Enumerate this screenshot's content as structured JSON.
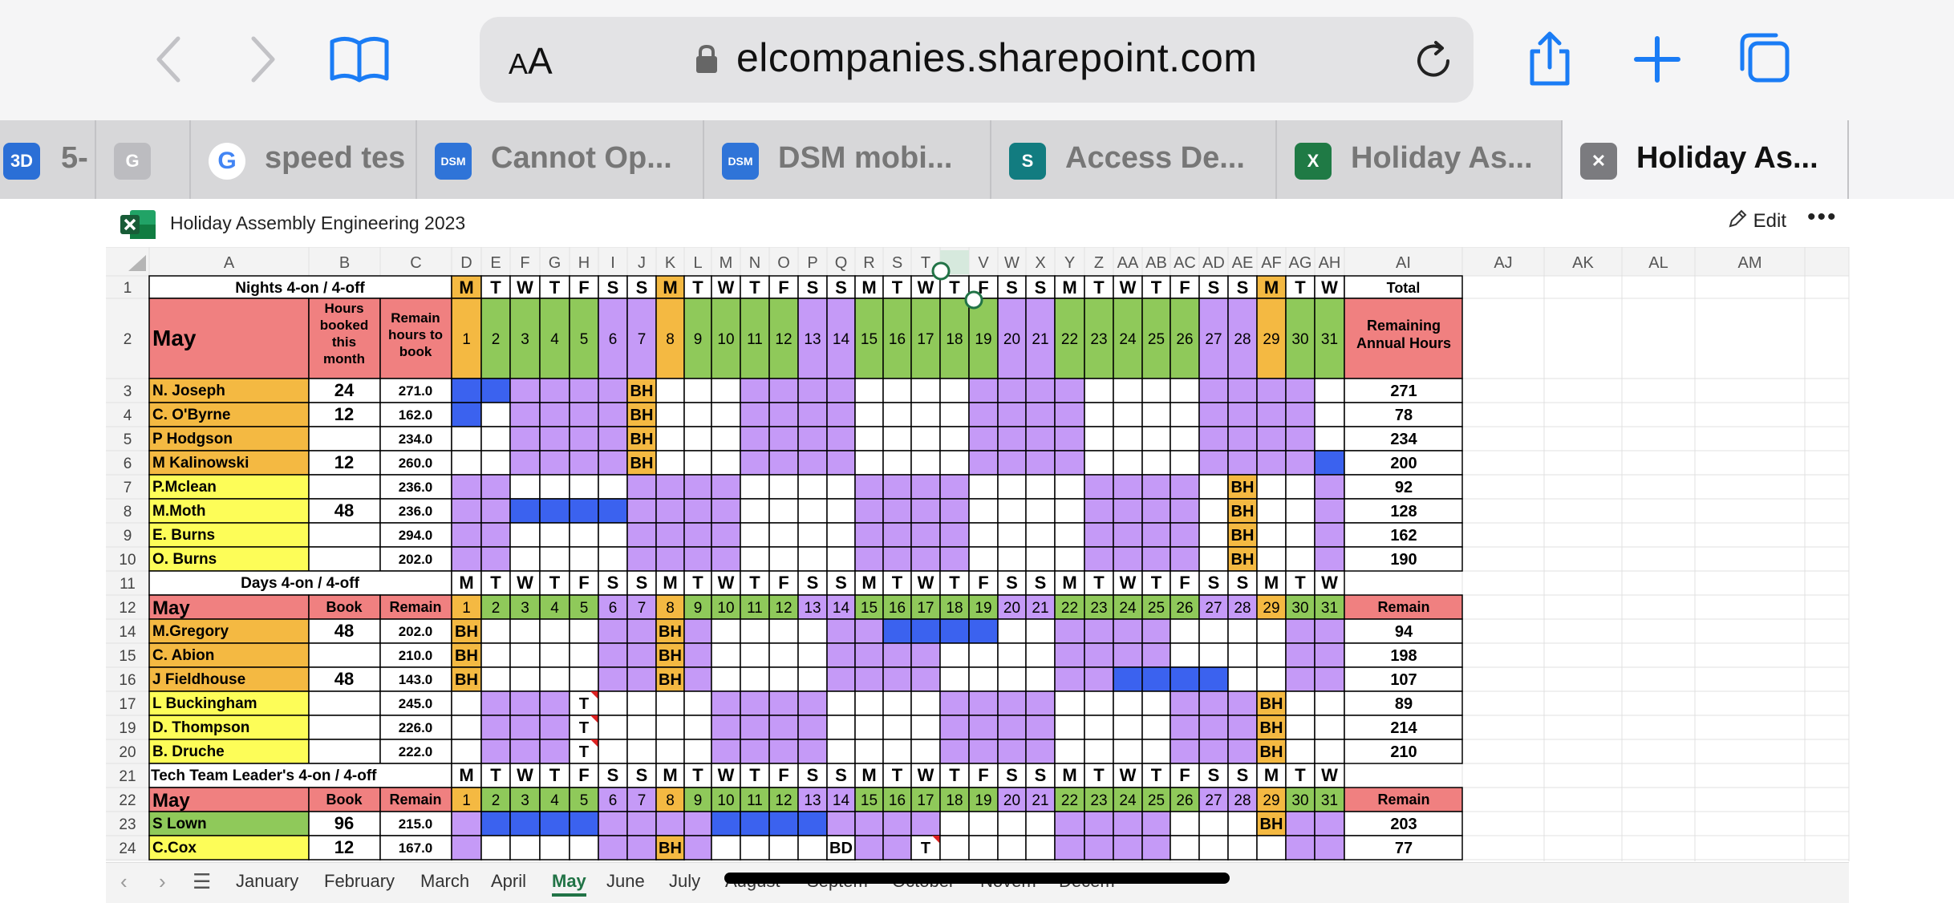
{
  "browser": {
    "url": "elcompanies.sharepoint.com",
    "aa_label_small": "A",
    "aa_label_big": "A",
    "tabs": [
      {
        "label": "5-",
        "icon_text": "3D",
        "icon_color": "#2b6fd6"
      },
      {
        "label": "",
        "icon_text": "G",
        "icon_color": "#bcbcc0"
      },
      {
        "label": "speed tes",
        "icon_text": "G",
        "icon_color": "#ffffff"
      },
      {
        "label": "Cannot Op...",
        "icon_text": "DSM",
        "icon_color": "#2f74d8"
      },
      {
        "label": "DSM mobi...",
        "icon_text": "DSM",
        "icon_color": "#2f74d8"
      },
      {
        "label": "Access De...",
        "icon_text": "S",
        "icon_color": "#127c80"
      },
      {
        "label": "Holiday As...",
        "icon_text": "X",
        "icon_color": "#1f7a45"
      },
      {
        "label": "Holiday As...",
        "icon_text": "✕",
        "icon_color": "#7b7b7f"
      }
    ]
  },
  "excel": {
    "doc_title": "Holiday Assembly Engineering 2023",
    "edit_label": "Edit",
    "more_label": "•••",
    "col_letters": [
      "A",
      "B",
      "C",
      "D",
      "E",
      "F",
      "G",
      "H",
      "I",
      "J",
      "K",
      "L",
      "M",
      "N",
      "O",
      "P",
      "Q",
      "R",
      "S",
      "T",
      "U",
      "V",
      "W",
      "X",
      "Y",
      "Z",
      "AA",
      "AB",
      "AC",
      "AD",
      "AE",
      "AF",
      "AG",
      "AH",
      "AI",
      "AJ",
      "AK",
      "AL",
      "AM"
    ],
    "day_letters": [
      "M",
      "T",
      "W",
      "T",
      "F",
      "S",
      "S",
      "M",
      "T",
      "W",
      "T",
      "F",
      "S",
      "S",
      "M",
      "T",
      "W",
      "T",
      "F",
      "S",
      "S",
      "M",
      "T",
      "W",
      "T",
      "F",
      "S",
      "S",
      "M",
      "T",
      "W"
    ],
    "day_types": [
      "o",
      "g",
      "g",
      "g",
      "g",
      "p",
      "p",
      "o",
      "g",
      "g",
      "g",
      "g",
      "p",
      "p",
      "g",
      "g",
      "g",
      "g",
      "g",
      "p",
      "p",
      "g",
      "g",
      "g",
      "g",
      "g",
      "p",
      "p",
      "o",
      "g",
      "g"
    ],
    "sections": [
      {
        "title": "Nights 4-on / 4-off",
        "title_row": "1",
        "header_row": "2",
        "month": "May",
        "col_b": "Hours booked this month",
        "col_c": "Remain hours to book",
        "col_total": "Total",
        "col_ai": "Remaining Annual Hours",
        "rows": [
          {
            "row": "3",
            "name": "N. Joseph",
            "color": "#f4b942",
            "booked": "24",
            "remain": "271.0",
            "ai": "271",
            "hol": [
              0,
              1
            ],
            "bh": [
              6
            ]
          },
          {
            "row": "4",
            "name": "C. O'Byrne",
            "color": "#f4b942",
            "booked": "12",
            "remain": "162.0",
            "ai": "78",
            "hol": [
              0
            ],
            "bh": [
              6
            ]
          },
          {
            "row": "5",
            "name": "P Hodgson",
            "color": "#f4b942",
            "booked": "",
            "remain": "234.0",
            "ai": "234",
            "hol": [],
            "bh": [
              6
            ]
          },
          {
            "row": "6",
            "name": "M Kalinowski",
            "color": "#f4b942",
            "booked": "12",
            "remain": "260.0",
            "ai": "200",
            "hol": [
              30
            ],
            "bh": [
              6
            ]
          },
          {
            "row": "7",
            "name": "P.Mclean",
            "color": "#fdfd58",
            "booked": "",
            "remain": "236.0",
            "ai": "92",
            "hol": [],
            "bh": [
              27
            ]
          },
          {
            "row": "8",
            "name": "M.Moth",
            "color": "#fdfd58",
            "booked": "48",
            "remain": "236.0",
            "ai": "128",
            "hol": [
              2,
              3,
              4,
              5
            ],
            "bh": [
              27
            ]
          },
          {
            "row": "9",
            "name": "E. Burns",
            "color": "#fdfd58",
            "booked": "",
            "remain": "294.0",
            "ai": "162",
            "hol": [],
            "bh": [
              27
            ]
          },
          {
            "row": "10",
            "name": "O. Burns",
            "color": "#fdfd58",
            "booked": "",
            "remain": "202.0",
            "ai": "190",
            "hol": [],
            "bh": [
              27
            ]
          }
        ]
      },
      {
        "title": "Days 4-on / 4-off",
        "title_row": "11",
        "header_row": "12",
        "month": "May",
        "col_b": "Book",
        "col_c": "Remain",
        "col_ai": "Remain",
        "rows": [
          {
            "row": "14",
            "name": "M.Gregory",
            "color": "#f4b942",
            "booked": "48",
            "remain": "202.0",
            "ai": "94",
            "hol": [
              15,
              16,
              17,
              18
            ],
            "bh": [
              0,
              7
            ]
          },
          {
            "row": "15",
            "name": "C. Abion",
            "color": "#f4b942",
            "booked": "",
            "remain": "210.0",
            "ai": "198",
            "hol": [],
            "bh": [
              0,
              7
            ]
          },
          {
            "row": "16",
            "name": "J Fieldhouse",
            "color": "#f4b942",
            "booked": "48",
            "remain": "143.0",
            "ai": "107",
            "hol": [
              23,
              24,
              25,
              26
            ],
            "bh": [
              0,
              7
            ]
          },
          {
            "row": "17",
            "name": "L  Buckingham",
            "color": "#fdfd58",
            "booked": "",
            "remain": "245.0",
            "ai": "89",
            "hol": [],
            "bh": [
              28
            ],
            "t": [
              4
            ]
          },
          {
            "row": "19",
            "name": "D. Thompson",
            "color": "#fdfd58",
            "booked": "",
            "remain": "226.0",
            "ai": "214",
            "hol": [],
            "bh": [
              28
            ],
            "t": [
              4
            ]
          },
          {
            "row": "20",
            "name": "B. Druche",
            "color": "#fdfd58",
            "booked": "",
            "remain": "222.0",
            "ai": "210",
            "hol": [],
            "bh": [
              28
            ],
            "t": [
              4
            ]
          }
        ]
      },
      {
        "title": "Tech Team Leader's  4-on / 4-off",
        "title_row": "21",
        "header_row": "22",
        "month": "May",
        "col_b": "Book",
        "col_c": "Remain",
        "col_ai": "Remain",
        "rows": [
          {
            "row": "23",
            "name": "S Lown",
            "color": "#8fc95a",
            "booked": "96",
            "remain": "215.0",
            "ai": "203",
            "hol": [
              1,
              2,
              3,
              4,
              9,
              10,
              11,
              12
            ],
            "bh": [
              28
            ]
          },
          {
            "row": "24",
            "name": "C.Cox",
            "color": "#fdfd58",
            "booked": "12",
            "remain": "167.0",
            "ai": "77",
            "hol": [],
            "bh": [
              7
            ],
            "bd": [
              13
            ],
            "t": [
              16
            ]
          }
        ]
      }
    ],
    "bh_label": "BH",
    "bd_label": "BD",
    "t_label": "T",
    "sheet_tabs": [
      "January",
      "February",
      "March",
      "April",
      "May",
      "June",
      "July",
      "August",
      "Septem",
      "October",
      "Novem",
      "Decem"
    ],
    "active_sheet": "May",
    "colors": {
      "orange": "#f4b942",
      "green": "#8fc95a",
      "purple": "#c59af7",
      "blue": "#3b62ef",
      "salmon": "#f08080",
      "yellow": "#fdfd58",
      "bh": "#f4b942"
    }
  }
}
